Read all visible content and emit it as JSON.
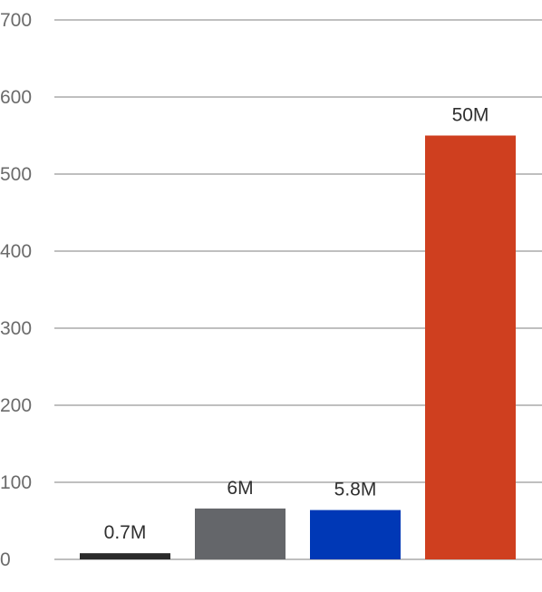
{
  "chart_data": {
    "type": "bar",
    "categories": [
      "",
      "",
      "",
      ""
    ],
    "values": [
      8,
      66,
      64,
      550
    ],
    "data_labels": [
      "0.7M",
      "6M",
      "5.8M",
      "50M"
    ],
    "bar_colors": [
      "#2b2b2b",
      "#64666a",
      "#0038b6",
      "#cf3f1f"
    ],
    "y_ticks": [
      0,
      100,
      200,
      300,
      400,
      500,
      600,
      700
    ],
    "ylim": [
      0,
      700
    ],
    "title": "",
    "xlabel": "",
    "ylabel": "",
    "grid": true,
    "legend": "none"
  }
}
